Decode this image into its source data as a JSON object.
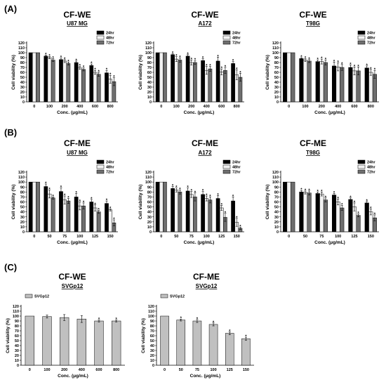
{
  "panel_labels": [
    "(A)",
    "(B)",
    "(C)"
  ],
  "colors": {
    "24hr": "#000000",
    "48hr": "#f2f2f2",
    "72hr": "#6e6e6e",
    "SVGp12": "#c0c0c0",
    "stroke": "#000000"
  },
  "chart_data": [
    {
      "type": "bar",
      "panel": "(A)",
      "title": "CF-WE",
      "subtitle": "U87 MG",
      "xlabel": "Conc. (μg/mL)",
      "ylabel": "Cell viability (%)",
      "ylim": [
        0,
        120
      ],
      "yticks": [
        0,
        10,
        20,
        30,
        40,
        50,
        60,
        70,
        80,
        90,
        100,
        110,
        120
      ],
      "categories": [
        "0",
        "100",
        "200",
        "400",
        "600",
        "800"
      ],
      "legend_position": "top-right",
      "series": [
        {
          "name": "24hr",
          "values": [
            100,
            93,
            86,
            80,
            74,
            59
          ],
          "errors": [
            0,
            2,
            3,
            3,
            3,
            5
          ],
          "significant": [
            false,
            true,
            true,
            true,
            true,
            true
          ]
        },
        {
          "name": "48hr",
          "values": [
            100,
            90,
            83,
            69,
            60,
            46
          ],
          "errors": [
            0,
            2,
            3,
            3,
            4,
            8
          ],
          "significant": [
            false,
            true,
            true,
            true,
            true,
            true
          ]
        },
        {
          "name": "72hr",
          "values": [
            100,
            85,
            78,
            66,
            56,
            41
          ],
          "errors": [
            0,
            3,
            3,
            3,
            4,
            8
          ],
          "significant": [
            false,
            true,
            true,
            true,
            true,
            true
          ]
        }
      ]
    },
    {
      "type": "bar",
      "panel": "",
      "title": "CF-WE",
      "subtitle": "A172",
      "xlabel": "Conc. (μg/mL)",
      "ylabel": "Cell viability (%)",
      "ylim": [
        0,
        120
      ],
      "yticks": [
        0,
        10,
        20,
        30,
        40,
        50,
        60,
        70,
        80,
        90,
        100,
        110,
        120
      ],
      "categories": [
        "0",
        "100",
        "200",
        "400",
        "600",
        "800"
      ],
      "legend_position": "top-right",
      "series": [
        {
          "name": "24hr",
          "values": [
            100,
            96,
            93,
            84,
            83,
            78
          ],
          "errors": [
            0,
            2,
            3,
            4,
            8,
            4
          ],
          "significant": [
            false,
            true,
            true,
            true,
            true,
            true
          ]
        },
        {
          "name": "48hr",
          "values": [
            100,
            87,
            80,
            64,
            61,
            55
          ],
          "errors": [
            0,
            5,
            5,
            8,
            6,
            10
          ],
          "significant": [
            false,
            true,
            true,
            true,
            true,
            true
          ]
        },
        {
          "name": "72hr",
          "values": [
            100,
            85,
            80,
            67,
            64,
            50
          ],
          "errors": [
            0,
            4,
            4,
            5,
            6,
            8
          ],
          "significant": [
            false,
            true,
            true,
            true,
            true,
            true
          ]
        }
      ]
    },
    {
      "type": "bar",
      "panel": "",
      "title": "CF-WE",
      "subtitle": "T98G",
      "xlabel": "Conc. (μg/mL)",
      "ylabel": "Cell viability (%)",
      "ylim": [
        0,
        120
      ],
      "yticks": [
        0,
        10,
        20,
        30,
        40,
        50,
        60,
        70,
        80,
        90,
        100,
        110,
        120
      ],
      "categories": [
        "0",
        "100",
        "200",
        "400",
        "600",
        "800"
      ],
      "legend_position": "top-right",
      "series": [
        {
          "name": "24hr",
          "values": [
            100,
            88,
            82,
            73,
            70,
            69
          ],
          "errors": [
            0,
            2,
            3,
            8,
            5,
            4
          ],
          "significant": [
            false,
            true,
            true,
            true,
            true,
            true
          ]
        },
        {
          "name": "48hr",
          "values": [
            100,
            85,
            82,
            71,
            63,
            60
          ],
          "errors": [
            0,
            3,
            5,
            8,
            8,
            6
          ],
          "significant": [
            false,
            true,
            true,
            true,
            true,
            true
          ]
        },
        {
          "name": "72hr",
          "values": [
            100,
            83,
            80,
            70,
            63,
            56
          ],
          "errors": [
            0,
            3,
            5,
            6,
            8,
            8
          ],
          "significant": [
            false,
            true,
            true,
            true,
            true,
            true
          ]
        }
      ]
    },
    {
      "type": "bar",
      "panel": "(B)",
      "title": "CF-ME",
      "subtitle": "U87 MG",
      "xlabel": "Conc. (μg/mL)",
      "ylabel": "Cell viability (%)",
      "ylim": [
        0,
        120
      ],
      "yticks": [
        0,
        10,
        20,
        30,
        40,
        50,
        60,
        70,
        80,
        90,
        100,
        110,
        120
      ],
      "categories": [
        "0",
        "50",
        "75",
        "100",
        "125",
        "150"
      ],
      "legend_position": "top-right",
      "series": [
        {
          "name": "24hr",
          "values": [
            100,
            91,
            81,
            70,
            60,
            57
          ],
          "errors": [
            0,
            5,
            7,
            7,
            5,
            5
          ],
          "significant": [
            false,
            true,
            true,
            true,
            true,
            true
          ]
        },
        {
          "name": "48hr",
          "values": [
            100,
            76,
            64,
            52,
            48,
            44
          ],
          "errors": [
            0,
            8,
            8,
            8,
            6,
            2
          ],
          "significant": [
            false,
            true,
            true,
            true,
            true,
            true
          ]
        },
        {
          "name": "72hr",
          "values": [
            100,
            68,
            62,
            52,
            40,
            18
          ],
          "errors": [
            0,
            2,
            5,
            6,
            3,
            6
          ],
          "significant": [
            false,
            true,
            true,
            true,
            true,
            true
          ]
        }
      ]
    },
    {
      "type": "bar",
      "panel": "",
      "title": "CF-ME",
      "subtitle": "A172",
      "xlabel": "Conc. (μg/mL)",
      "ylabel": "Cell viability (%)",
      "ylim": [
        0,
        120
      ],
      "yticks": [
        0,
        10,
        20,
        30,
        40,
        50,
        60,
        70,
        80,
        90,
        100,
        110,
        120
      ],
      "categories": [
        "0",
        "50",
        "75",
        "100",
        "125",
        "150"
      ],
      "legend_position": "top-right",
      "series": [
        {
          "name": "24hr",
          "values": [
            100,
            87,
            82,
            75,
            67,
            62
          ],
          "errors": [
            0,
            4,
            6,
            6,
            6,
            8
          ],
          "significant": [
            false,
            true,
            true,
            true,
            true,
            true
          ]
        },
        {
          "name": "48hr",
          "values": [
            100,
            84,
            75,
            67,
            48,
            19
          ],
          "errors": [
            0,
            4,
            6,
            5,
            5,
            8
          ],
          "significant": [
            false,
            true,
            true,
            true,
            true,
            true
          ]
        },
        {
          "name": "72hr",
          "values": [
            100,
            80,
            70,
            64,
            29,
            7
          ],
          "errors": [
            0,
            4,
            8,
            6,
            8,
            2
          ],
          "significant": [
            false,
            true,
            true,
            true,
            true,
            true
          ]
        }
      ]
    },
    {
      "type": "bar",
      "panel": "",
      "title": "CF-ME",
      "subtitle": "T98G",
      "xlabel": "Conc. (μg/mL)",
      "ylabel": "Cell viability (%)",
      "ylim": [
        0,
        120
      ],
      "yticks": [
        0,
        10,
        20,
        30,
        40,
        50,
        60,
        70,
        80,
        90,
        100,
        110,
        120
      ],
      "categories": [
        "0",
        "50",
        "75",
        "100",
        "125",
        "150"
      ],
      "legend_position": "top-right",
      "series": [
        {
          "name": "24hr",
          "values": [
            100,
            80,
            77,
            74,
            65,
            58
          ],
          "errors": [
            0,
            3,
            3,
            3,
            3,
            3
          ],
          "significant": [
            false,
            true,
            true,
            true,
            true,
            true
          ]
        },
        {
          "name": "48hr",
          "values": [
            100,
            79,
            76,
            60,
            50,
            40
          ],
          "errors": [
            0,
            3,
            4,
            6,
            8,
            6
          ],
          "significant": [
            false,
            true,
            true,
            true,
            true,
            true
          ]
        },
        {
          "name": "72hr",
          "values": [
            100,
            78,
            64,
            48,
            33,
            28
          ],
          "errors": [
            0,
            4,
            4,
            5,
            3,
            6
          ],
          "significant": [
            false,
            true,
            true,
            true,
            true,
            true
          ]
        }
      ]
    },
    {
      "type": "bar",
      "panel": "(C)",
      "title": "CF-WE",
      "subtitle": "SVGp12",
      "xlabel": "Conc. (μg/mL)",
      "ylabel": "Cell viability (%)",
      "ylim": [
        0,
        120
      ],
      "yticks": [
        0,
        10,
        20,
        30,
        40,
        50,
        60,
        70,
        80,
        90,
        100,
        110,
        120
      ],
      "categories": [
        "0",
        "100",
        "200",
        "400",
        "600",
        "800"
      ],
      "legend_position": "top-left",
      "series": [
        {
          "name": "SVGp12",
          "values": [
            100,
            99,
            97,
            94,
            90,
            90
          ],
          "errors": [
            0,
            3,
            6,
            7,
            2,
            2
          ],
          "significant": [
            false,
            false,
            false,
            false,
            true,
            true
          ]
        }
      ]
    },
    {
      "type": "bar",
      "panel": "",
      "title": "CF-ME",
      "subtitle": "SVGp12",
      "xlabel": "Conc. (μg/mL)",
      "ylabel": "Cell viability (%)",
      "ylim": [
        0,
        120
      ],
      "yticks": [
        0,
        10,
        20,
        30,
        40,
        50,
        60,
        70,
        80,
        90,
        100,
        110,
        120
      ],
      "categories": [
        "0",
        "50",
        "75",
        "100",
        "125",
        "150"
      ],
      "legend_position": "top-left",
      "series": [
        {
          "name": "SVGp12",
          "values": [
            100,
            92,
            90,
            83,
            65,
            54
          ],
          "errors": [
            0,
            2,
            3,
            3,
            3,
            3
          ],
          "significant": [
            false,
            true,
            true,
            true,
            true,
            true
          ]
        }
      ]
    }
  ]
}
